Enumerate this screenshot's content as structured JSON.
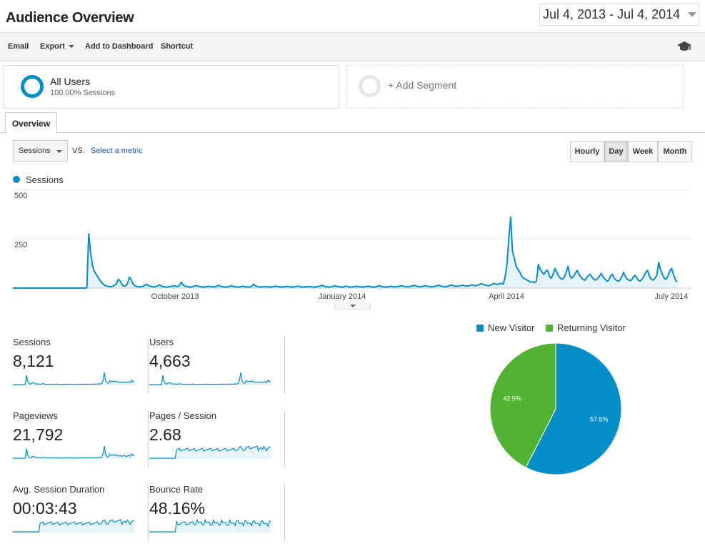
{
  "header": {
    "title": "Audience Overview",
    "date_range": "Jul 4, 2013 - Jul 4, 2014"
  },
  "toolbar": {
    "email": "Email",
    "export": "Export",
    "add_to_dashboard": "Add to Dashboard",
    "shortcut": "Shortcut"
  },
  "segments": {
    "all_users": {
      "name": "All Users",
      "detail": "100.00% Sessions"
    },
    "add_label": "+ Add Segment"
  },
  "tabs": {
    "overview": "Overview"
  },
  "controls": {
    "metric": "Sessions",
    "vs": "VS.",
    "select_metric": "Select a metric",
    "granularity": [
      "Hourly",
      "Day",
      "Week",
      "Month"
    ],
    "active_granularity": "Day"
  },
  "colors": {
    "sessions_blue": "#058dc7",
    "returning_green": "#50b432",
    "link_blue": "#1a5aa0"
  },
  "chart_data": [
    {
      "type": "line",
      "series": [
        {
          "name": "Sessions",
          "values": [
            0,
            0,
            0,
            0,
            0,
            0,
            0,
            0,
            0,
            0,
            0,
            0,
            0,
            0,
            0,
            0,
            0,
            0,
            0,
            0,
            0,
            0,
            0,
            0,
            0,
            0,
            0,
            0,
            0,
            0,
            0,
            0,
            0,
            0,
            0,
            0,
            0,
            0,
            0,
            0,
            3,
            275,
            180,
            115,
            85,
            70,
            55,
            40,
            28,
            18,
            12,
            10,
            8,
            7,
            10,
            14,
            22,
            45,
            35,
            18,
            10,
            12,
            24,
            55,
            42,
            20,
            12,
            8,
            6,
            6,
            8,
            12,
            20,
            14,
            10,
            8,
            6,
            7,
            10,
            16,
            12,
            8,
            6,
            5,
            6,
            8,
            9,
            12,
            10,
            8,
            12,
            30,
            16,
            10,
            8,
            6,
            5,
            7,
            10,
            13,
            10,
            8,
            6,
            5,
            6,
            8,
            9,
            7,
            6,
            6,
            9,
            14,
            10,
            8,
            6,
            5,
            6,
            9,
            12,
            9,
            7,
            6,
            5,
            7,
            9,
            8,
            6,
            5,
            6,
            8,
            20,
            12,
            8,
            6,
            5,
            6,
            7,
            8,
            6,
            5,
            6,
            8,
            10,
            8,
            6,
            5,
            6,
            7,
            9,
            7,
            6,
            5,
            6,
            8,
            10,
            8,
            6,
            5,
            6,
            7,
            8,
            7,
            6,
            5,
            6,
            8,
            10,
            14,
            10,
            8,
            6,
            5,
            6,
            9,
            12,
            9,
            7,
            6,
            5,
            7,
            10,
            8,
            6,
            5,
            6,
            8,
            9,
            7,
            6,
            5,
            6,
            8,
            10,
            8,
            6,
            5,
            6,
            9,
            12,
            9,
            7,
            6,
            5,
            7,
            9,
            8,
            6,
            7,
            8,
            10,
            12,
            10,
            8,
            6,
            7,
            9,
            11,
            14,
            10,
            8,
            7,
            8,
            10,
            12,
            10,
            8,
            6,
            7,
            9,
            12,
            14,
            11,
            9,
            8,
            7,
            9,
            12,
            16,
            12,
            10,
            9,
            10,
            12,
            15,
            12,
            10,
            11,
            13,
            16,
            14,
            12,
            14,
            18,
            22,
            20,
            16,
            14,
            12,
            14,
            18,
            24,
            20,
            18,
            22,
            25,
            20,
            55,
            120,
            250,
            360,
            190,
            150,
            110,
            95,
            80,
            60,
            50,
            45,
            40,
            35,
            30,
            32,
            28,
            35,
            120,
            95,
            80,
            70,
            85,
            90,
            60,
            50,
            70,
            100,
            80,
            60,
            50,
            45,
            55,
            80,
            110,
            65,
            50,
            60,
            75,
            90,
            70,
            55,
            45,
            40,
            50,
            65,
            70,
            55,
            45,
            40,
            50,
            60,
            75,
            55,
            45,
            35,
            40,
            60,
            70,
            50,
            40,
            35,
            40,
            55,
            80,
            60,
            45,
            40,
            38,
            50,
            65,
            55,
            40,
            35,
            45,
            60,
            80,
            90,
            60,
            45,
            40,
            50,
            65,
            130,
            95,
            70,
            50,
            45,
            60,
            85,
            100,
            70,
            45,
            30
          ]
        }
      ],
      "x_tick_labels": [
        "October 2013",
        "January 2014",
        "April 2014",
        "July 2014"
      ],
      "y_tick_labels": [
        "250",
        "500"
      ],
      "ylim": [
        0,
        500
      ],
      "grid": true,
      "legend_position": "top-left"
    },
    {
      "type": "pie",
      "categories": [
        "New Visitor",
        "Returning Visitor"
      ],
      "values": [
        57.5,
        42.5
      ],
      "data_labels": [
        "57.5%",
        "42.5%"
      ],
      "colors": [
        "#058dc7",
        "#50b432"
      ],
      "legend_position": "top"
    }
  ],
  "metrics": [
    {
      "label": "Sessions",
      "value": "8,121",
      "trend": "sessions"
    },
    {
      "label": "Users",
      "value": "4,663",
      "trend": "sessions"
    },
    {
      "label": "Pageviews",
      "value": "21,792",
      "trend": "sessions"
    },
    {
      "label": "Pages / Session",
      "value": "2.68",
      "trend": "flat"
    },
    {
      "label": "Avg. Session Duration",
      "value": "00:03:43",
      "trend": "flat"
    },
    {
      "label": "Bounce Rate",
      "value": "48.16%",
      "trend": "noisy"
    }
  ]
}
